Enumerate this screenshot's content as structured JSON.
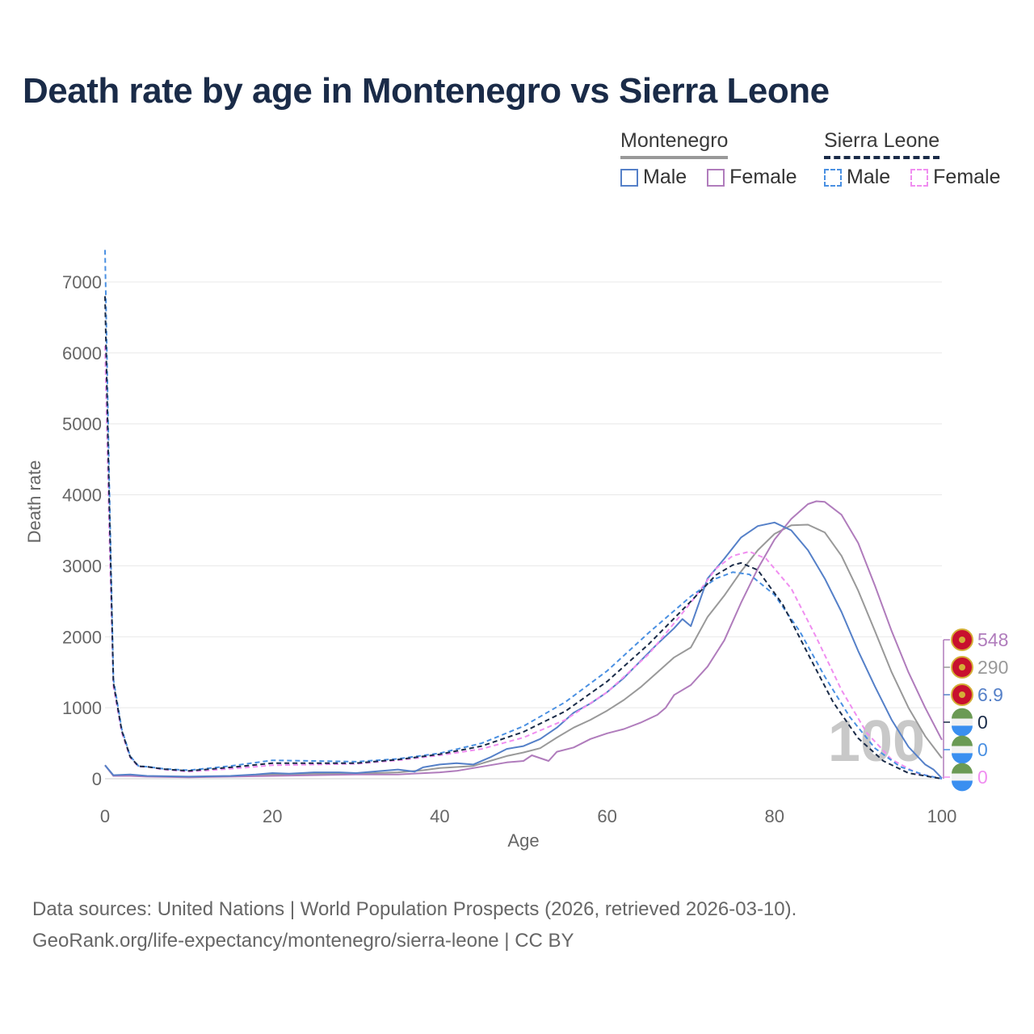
{
  "colors": {
    "montenegro_male": "#5580c8",
    "montenegro_female": "#b07cbc",
    "sierra_leone_male": "#4a90e2",
    "sierra_leone_female": "#f08ef0",
    "montenegro_total": "#999999",
    "sierra_leone_total": "#1a2b48"
  },
  "legend": {
    "montenegro": {
      "heading": "Montenegro",
      "male": "Male",
      "female": "Female"
    },
    "sierra_leone": {
      "heading": "Sierra Leone",
      "male": "Male",
      "female": "Female"
    }
  },
  "footer": {
    "line1": "Data sources: United Nations | World Population Prospects (2026, retrieved 2026-03-10).",
    "line2": "GeoRank.org/life-expectancy/montenegro/sierra-leone | CC BY"
  },
  "chart_data": {
    "type": "line",
    "title": "Death rate by age in Montenegro vs Sierra Leone",
    "xlabel": "Age",
    "ylabel": "Death rate",
    "xlim": [
      0,
      100
    ],
    "ylim": [
      0,
      7500
    ],
    "xticks": [
      0,
      20,
      40,
      60,
      80,
      100
    ],
    "yticks": [
      0,
      1000,
      2000,
      3000,
      4000,
      5000,
      6000,
      7000
    ],
    "grid": true,
    "watermark": "100",
    "end_labels": [
      {
        "value": "548",
        "series": "Montenegro Female",
        "icon": "montenegro-flag-icon"
      },
      {
        "value": "290",
        "series": "Montenegro Total",
        "icon": "montenegro-flag-icon"
      },
      {
        "value": "6.9",
        "series": "Montenegro Male",
        "icon": "montenegro-flag-icon"
      },
      {
        "value": "0",
        "series": "Sierra Leone Total",
        "icon": "sierra-leone-flag-icon"
      },
      {
        "value": "0",
        "series": "Sierra Leone Male",
        "icon": "sierra-leone-flag-icon"
      },
      {
        "value": "0",
        "series": "Sierra Leone Female",
        "icon": "sierra-leone-flag-icon"
      }
    ],
    "series": [
      {
        "name": "Montenegro Male",
        "country": "Montenegro",
        "sex": "Male",
        "style": "solid",
        "points": [
          [
            0,
            190
          ],
          [
            1,
            50
          ],
          [
            3,
            60
          ],
          [
            5,
            40
          ],
          [
            10,
            30
          ],
          [
            15,
            40
          ],
          [
            18,
            60
          ],
          [
            20,
            80
          ],
          [
            22,
            70
          ],
          [
            25,
            90
          ],
          [
            28,
            90
          ],
          [
            30,
            80
          ],
          [
            32,
            100
          ],
          [
            35,
            130
          ],
          [
            37,
            100
          ],
          [
            38,
            160
          ],
          [
            40,
            200
          ],
          [
            42,
            220
          ],
          [
            44,
            200
          ],
          [
            46,
            300
          ],
          [
            48,
            420
          ],
          [
            50,
            460
          ],
          [
            52,
            560
          ],
          [
            54,
            720
          ],
          [
            56,
            930
          ],
          [
            58,
            1060
          ],
          [
            60,
            1220
          ],
          [
            62,
            1420
          ],
          [
            64,
            1660
          ],
          [
            66,
            1900
          ],
          [
            68,
            2120
          ],
          [
            69,
            2250
          ],
          [
            70,
            2150
          ],
          [
            72,
            2820
          ],
          [
            74,
            3100
          ],
          [
            76,
            3400
          ],
          [
            78,
            3560
          ],
          [
            80,
            3610
          ],
          [
            82,
            3500
          ],
          [
            84,
            3220
          ],
          [
            86,
            2820
          ],
          [
            88,
            2350
          ],
          [
            90,
            1800
          ],
          [
            92,
            1300
          ],
          [
            94,
            830
          ],
          [
            96,
            450
          ],
          [
            98,
            200
          ],
          [
            99,
            130
          ],
          [
            100,
            7
          ]
        ]
      },
      {
        "name": "Montenegro Female",
        "country": "Montenegro",
        "sex": "Female",
        "style": "solid",
        "points": [
          [
            0,
            190
          ],
          [
            1,
            40
          ],
          [
            3,
            40
          ],
          [
            5,
            30
          ],
          [
            10,
            20
          ],
          [
            15,
            30
          ],
          [
            20,
            40
          ],
          [
            25,
            50
          ],
          [
            30,
            60
          ],
          [
            35,
            60
          ],
          [
            40,
            90
          ],
          [
            42,
            110
          ],
          [
            44,
            150
          ],
          [
            46,
            190
          ],
          [
            48,
            230
          ],
          [
            50,
            250
          ],
          [
            51,
            330
          ],
          [
            52,
            290
          ],
          [
            53,
            250
          ],
          [
            54,
            380
          ],
          [
            56,
            440
          ],
          [
            58,
            560
          ],
          [
            60,
            640
          ],
          [
            62,
            700
          ],
          [
            64,
            790
          ],
          [
            66,
            900
          ],
          [
            67,
            1000
          ],
          [
            68,
            1180
          ],
          [
            70,
            1320
          ],
          [
            72,
            1580
          ],
          [
            74,
            1950
          ],
          [
            76,
            2480
          ],
          [
            78,
            2960
          ],
          [
            80,
            3370
          ],
          [
            82,
            3660
          ],
          [
            84,
            3870
          ],
          [
            85,
            3910
          ],
          [
            86,
            3900
          ],
          [
            88,
            3720
          ],
          [
            90,
            3320
          ],
          [
            92,
            2720
          ],
          [
            94,
            2080
          ],
          [
            96,
            1500
          ],
          [
            98,
            1000
          ],
          [
            100,
            548
          ]
        ]
      },
      {
        "name": "Montenegro Total",
        "country": "Montenegro",
        "sex": "Total",
        "style": "solid",
        "points": [
          [
            0,
            190
          ],
          [
            1,
            40
          ],
          [
            3,
            50
          ],
          [
            5,
            35
          ],
          [
            10,
            25
          ],
          [
            15,
            35
          ],
          [
            20,
            60
          ],
          [
            25,
            70
          ],
          [
            30,
            70
          ],
          [
            35,
            90
          ],
          [
            38,
            120
          ],
          [
            40,
            150
          ],
          [
            44,
            180
          ],
          [
            46,
            250
          ],
          [
            48,
            320
          ],
          [
            50,
            370
          ],
          [
            52,
            430
          ],
          [
            54,
            580
          ],
          [
            56,
            720
          ],
          [
            58,
            830
          ],
          [
            60,
            960
          ],
          [
            62,
            1110
          ],
          [
            64,
            1290
          ],
          [
            66,
            1500
          ],
          [
            68,
            1710
          ],
          [
            70,
            1850
          ],
          [
            72,
            2280
          ],
          [
            74,
            2580
          ],
          [
            76,
            2920
          ],
          [
            78,
            3220
          ],
          [
            80,
            3450
          ],
          [
            82,
            3570
          ],
          [
            84,
            3580
          ],
          [
            86,
            3470
          ],
          [
            88,
            3140
          ],
          [
            90,
            2650
          ],
          [
            92,
            2080
          ],
          [
            94,
            1500
          ],
          [
            96,
            1000
          ],
          [
            98,
            600
          ],
          [
            100,
            290
          ]
        ]
      },
      {
        "name": "Sierra Leone Male",
        "country": "Sierra Leone",
        "sex": "Male",
        "style": "dashed",
        "points": [
          [
            0,
            7450
          ],
          [
            0.5,
            4200
          ],
          [
            1,
            1400
          ],
          [
            2,
            700
          ],
          [
            3,
            320
          ],
          [
            4,
            180
          ],
          [
            5,
            170
          ],
          [
            7,
            140
          ],
          [
            10,
            120
          ],
          [
            15,
            180
          ],
          [
            20,
            260
          ],
          [
            25,
            250
          ],
          [
            30,
            240
          ],
          [
            35,
            280
          ],
          [
            40,
            360
          ],
          [
            45,
            500
          ],
          [
            50,
            740
          ],
          [
            55,
            1080
          ],
          [
            60,
            1520
          ],
          [
            65,
            2060
          ],
          [
            70,
            2570
          ],
          [
            73,
            2820
          ],
          [
            75,
            2910
          ],
          [
            77,
            2880
          ],
          [
            80,
            2590
          ],
          [
            83,
            2080
          ],
          [
            86,
            1440
          ],
          [
            89,
            870
          ],
          [
            92,
            430
          ],
          [
            95,
            170
          ],
          [
            98,
            50
          ],
          [
            100,
            0
          ]
        ]
      },
      {
        "name": "Sierra Leone Female",
        "country": "Sierra Leone",
        "sex": "Female",
        "style": "dashed",
        "points": [
          [
            0,
            6100
          ],
          [
            0.5,
            3500
          ],
          [
            1,
            1300
          ],
          [
            2,
            650
          ],
          [
            3,
            300
          ],
          [
            4,
            170
          ],
          [
            5,
            170
          ],
          [
            7,
            130
          ],
          [
            10,
            100
          ],
          [
            15,
            140
          ],
          [
            20,
            190
          ],
          [
            25,
            200
          ],
          [
            30,
            210
          ],
          [
            35,
            260
          ],
          [
            40,
            330
          ],
          [
            45,
            420
          ],
          [
            50,
            580
          ],
          [
            55,
            830
          ],
          [
            60,
            1220
          ],
          [
            65,
            1760
          ],
          [
            70,
            2480
          ],
          [
            73,
            2960
          ],
          [
            75,
            3140
          ],
          [
            77,
            3200
          ],
          [
            79,
            3100
          ],
          [
            82,
            2680
          ],
          [
            85,
            1990
          ],
          [
            88,
            1250
          ],
          [
            91,
            650
          ],
          [
            94,
            270
          ],
          [
            97,
            80
          ],
          [
            100,
            0
          ]
        ]
      },
      {
        "name": "Sierra Leone Total",
        "country": "Sierra Leone",
        "sex": "Total",
        "style": "dashed",
        "points": [
          [
            0,
            6800
          ],
          [
            0.5,
            3900
          ],
          [
            1,
            1350
          ],
          [
            2,
            680
          ],
          [
            3,
            310
          ],
          [
            4,
            175
          ],
          [
            5,
            170
          ],
          [
            7,
            135
          ],
          [
            10,
            110
          ],
          [
            15,
            160
          ],
          [
            20,
            220
          ],
          [
            25,
            220
          ],
          [
            30,
            220
          ],
          [
            35,
            270
          ],
          [
            40,
            345
          ],
          [
            45,
            460
          ],
          [
            50,
            660
          ],
          [
            55,
            950
          ],
          [
            60,
            1370
          ],
          [
            65,
            1900
          ],
          [
            70,
            2500
          ],
          [
            73,
            2870
          ],
          [
            75,
            3010
          ],
          [
            76,
            3040
          ],
          [
            78,
            2940
          ],
          [
            81,
            2450
          ],
          [
            84,
            1760
          ],
          [
            87,
            1080
          ],
          [
            90,
            570
          ],
          [
            93,
            250
          ],
          [
            96,
            80
          ],
          [
            100,
            0
          ]
        ]
      }
    ]
  }
}
